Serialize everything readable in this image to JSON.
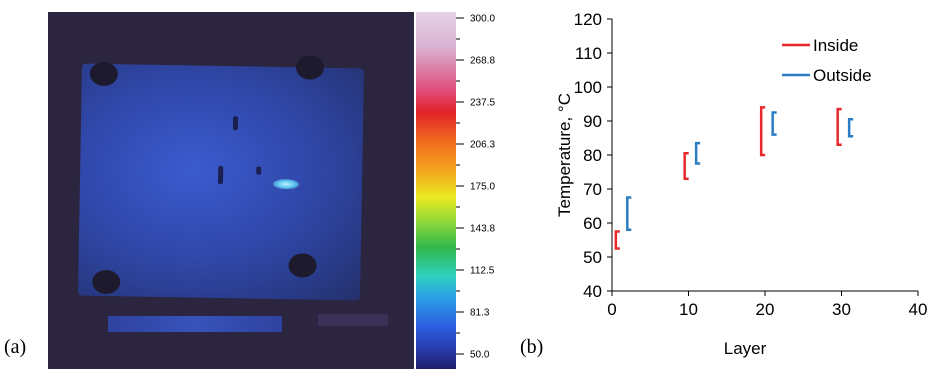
{
  "panel_labels": {
    "a": "(a)",
    "b": "(b)"
  },
  "thermal_scale": {
    "ticks": [
      "300.0",
      "268.8",
      "237.5",
      "206.3",
      "175.0",
      "143.8",
      "112.5",
      "81.3",
      "50.0"
    ]
  },
  "chart_data": {
    "type": "line",
    "xlabel": "Layer",
    "ylabel": "Temperature, °C",
    "xlim": [
      0,
      40
    ],
    "ylim": [
      40,
      120
    ],
    "xticks": [
      0,
      10,
      20,
      30,
      40
    ],
    "yticks": [
      40,
      50,
      60,
      70,
      80,
      90,
      100,
      110,
      120
    ],
    "legend_position": "top-right",
    "series": [
      {
        "name": "Inside",
        "color": "#e8282a",
        "segments": [
          {
            "x": 0.5,
            "y_low": 52.5,
            "y_high": 57.5
          },
          {
            "x": 9.5,
            "y_low": 73,
            "y_high": 80.5
          },
          {
            "x": 19.5,
            "y_low": 80,
            "y_high": 94
          },
          {
            "x": 29.5,
            "y_low": 83,
            "y_high": 93.5
          }
        ]
      },
      {
        "name": "Outside",
        "color": "#2a7cc4",
        "segments": [
          {
            "x": 2,
            "y_low": 58,
            "y_high": 67.5
          },
          {
            "x": 11,
            "y_low": 77.5,
            "y_high": 83.5
          },
          {
            "x": 21,
            "y_low": 86,
            "y_high": 92.5
          },
          {
            "x": 31,
            "y_low": 85.5,
            "y_high": 90.5
          }
        ]
      }
    ]
  }
}
